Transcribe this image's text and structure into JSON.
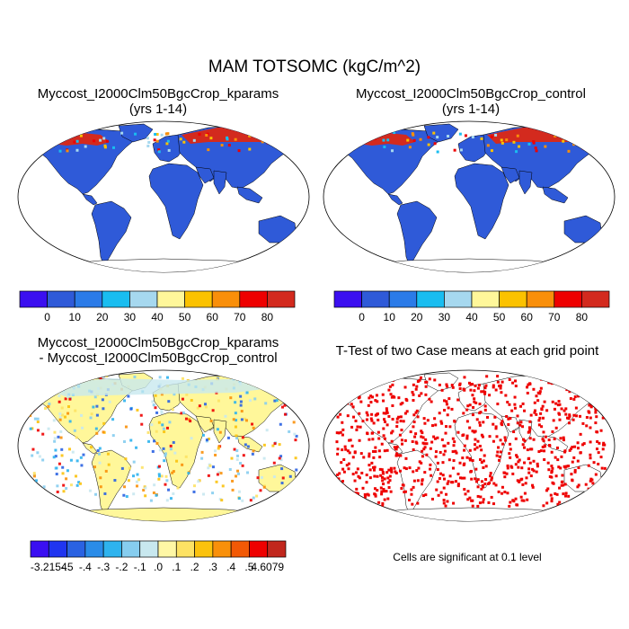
{
  "title": "MAM TOTSOMC (kgC/m^2)",
  "panels": {
    "kparams": {
      "title": "Myccost_I2000Clm50BgcCrop_kparams",
      "subtitle": "(yrs 1-14)"
    },
    "control": {
      "title": "Myccost_I2000Clm50BgcCrop_control",
      "subtitle": "(yrs 1-14)"
    },
    "difference": {
      "title_line1": "Myccost_I2000Clm50BgcCrop_kparams",
      "title_line2": "- Myccost_I2000Clm50BgcCrop_control"
    },
    "ttest": {
      "title": "T-Test of two Case means at each grid point",
      "note": "Cells are significant at 0.1 level"
    }
  },
  "colorbar_abs": {
    "colors": [
      "#3b0ff0",
      "#2f5ad8",
      "#2b7be8",
      "#19bdf0",
      "#a6d8ef",
      "#fff79a",
      "#fbc200",
      "#f98f0a",
      "#ee0000",
      "#d32a1e"
    ],
    "labels": [
      "0",
      "10",
      "20",
      "30",
      "40",
      "50",
      "60",
      "70",
      "80"
    ]
  },
  "colorbar_diff": {
    "colors": [
      "#3a0ff2",
      "#2035f0",
      "#2a62e2",
      "#2a8ce8",
      "#2eb3ee",
      "#86cdef",
      "#c8e8ef",
      "#fff7a5",
      "#fde264",
      "#fbc20d",
      "#f9900a",
      "#f25905",
      "#ee0000",
      "#c1271d"
    ],
    "labels": [
      "-3.2154",
      "-.5",
      "-.4",
      "-.3",
      "-.2",
      "-.1",
      ".0",
      ".1",
      ".2",
      ".3",
      ".4",
      ".5",
      "4.6079"
    ]
  },
  "map_colors": {
    "base_blue": "#2f5ad8",
    "high_red": "#d32a1e",
    "diff_neutral": "#fff79a",
    "diff_light_blue": "#c8e8ef",
    "significant_red": "#ee0000"
  }
}
